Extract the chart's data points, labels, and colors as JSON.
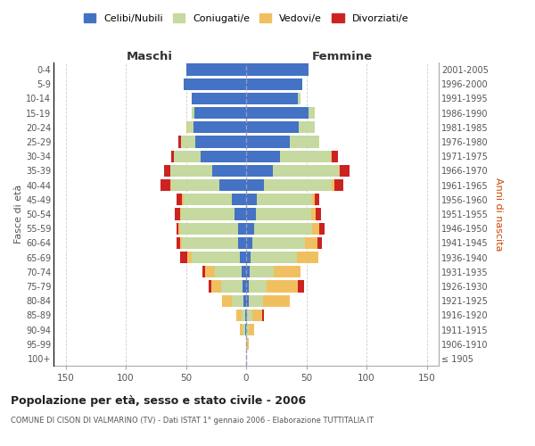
{
  "age_groups": [
    "100+",
    "95-99",
    "90-94",
    "85-89",
    "80-84",
    "75-79",
    "70-74",
    "65-69",
    "60-64",
    "55-59",
    "50-54",
    "45-49",
    "40-44",
    "35-39",
    "30-34",
    "25-29",
    "20-24",
    "15-19",
    "10-14",
    "5-9",
    "0-4"
  ],
  "birth_years": [
    "≤ 1905",
    "1906-1910",
    "1911-1915",
    "1916-1920",
    "1921-1925",
    "1926-1930",
    "1931-1935",
    "1936-1940",
    "1941-1945",
    "1946-1950",
    "1951-1955",
    "1956-1960",
    "1961-1965",
    "1966-1970",
    "1971-1975",
    "1976-1980",
    "1981-1985",
    "1986-1990",
    "1991-1995",
    "1996-2000",
    "2001-2005"
  ],
  "maschi": {
    "celibi": [
      0,
      0,
      1,
      1,
      2,
      3,
      4,
      5,
      7,
      7,
      10,
      12,
      22,
      28,
      38,
      42,
      44,
      43,
      45,
      52,
      50
    ],
    "coniugati": [
      0,
      0,
      2,
      3,
      10,
      18,
      22,
      40,
      46,
      48,
      44,
      40,
      40,
      35,
      22,
      12,
      5,
      2,
      0,
      0,
      0
    ],
    "vedovi": [
      0,
      0,
      2,
      4,
      8,
      8,
      8,
      4,
      2,
      1,
      1,
      1,
      1,
      0,
      0,
      0,
      1,
      0,
      0,
      0,
      0
    ],
    "divorziati": [
      0,
      0,
      0,
      0,
      0,
      2,
      2,
      6,
      3,
      2,
      4,
      5,
      8,
      5,
      2,
      2,
      0,
      0,
      0,
      0,
      0
    ]
  },
  "femmine": {
    "nubili": [
      0,
      0,
      0,
      1,
      2,
      2,
      3,
      4,
      5,
      7,
      8,
      9,
      15,
      22,
      28,
      36,
      44,
      52,
      43,
      47,
      52
    ],
    "coniugate": [
      0,
      0,
      2,
      4,
      12,
      15,
      20,
      38,
      44,
      48,
      46,
      46,
      56,
      55,
      42,
      25,
      13,
      5,
      2,
      0,
      0
    ],
    "vedove": [
      0,
      2,
      5,
      8,
      22,
      26,
      22,
      18,
      10,
      6,
      4,
      2,
      2,
      1,
      1,
      0,
      0,
      0,
      0,
      0,
      0
    ],
    "divorziate": [
      0,
      0,
      0,
      2,
      0,
      5,
      0,
      0,
      4,
      4,
      4,
      4,
      8,
      8,
      5,
      0,
      0,
      0,
      0,
      0,
      0
    ]
  },
  "colors": {
    "celibi": "#4472c4",
    "coniugati": "#c5d9a0",
    "vedovi": "#f0c060",
    "divorziati": "#cc2222"
  },
  "xlim": 160,
  "title": "Popolazione per età, sesso e stato civile - 2006",
  "subtitle": "COMUNE DI CISON DI VALMARINO (TV) - Dati ISTAT 1° gennaio 2006 - Elaborazione TUTTITALIA.IT",
  "ylabel_left": "Fasce di età",
  "ylabel_right": "Anni di nascita",
  "xlabel_left": "Maschi",
  "xlabel_right": "Femmine"
}
